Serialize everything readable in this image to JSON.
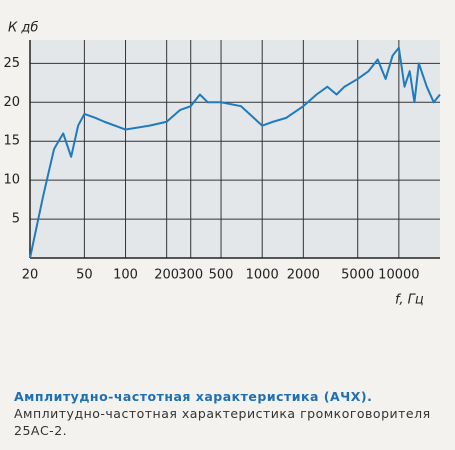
{
  "chart_data": {
    "type": "line",
    "y_label": "К дб",
    "x_label": "f, Гц",
    "x": [
      20,
      25,
      30,
      35,
      40,
      45,
      50,
      60,
      70,
      100,
      150,
      200,
      250,
      300,
      350,
      400,
      500,
      700,
      1000,
      1200,
      1500,
      2000,
      2500,
      3000,
      3500,
      4000,
      5000,
      6000,
      7000,
      8000,
      9000,
      10000,
      11000,
      12000,
      13000,
      14000,
      16000,
      18000,
      20000
    ],
    "series": [
      {
        "color": "#1f7bbf",
        "values": [
          0,
          8,
          14,
          16,
          13,
          17,
          18.5,
          18,
          17.5,
          16.5,
          17,
          17.5,
          19,
          19.5,
          21,
          20,
          20,
          19.5,
          17,
          17.5,
          18,
          19.5,
          21,
          22,
          21,
          22,
          23,
          24,
          25.5,
          23,
          26,
          27,
          22,
          24,
          20,
          25,
          22,
          20,
          21
        ]
      }
    ],
    "xlim": [
      20,
      20000
    ],
    "xscale": "log",
    "xticks": [
      20,
      50,
      100,
      200,
      300,
      500,
      1000,
      2000,
      5000,
      10000
    ],
    "ylim": [
      0,
      28
    ],
    "yticks": [
      5,
      10,
      15,
      20,
      25
    ],
    "grid": true
  },
  "caption": {
    "title": "Амплитудно-частотная характеристика (АЧХ).",
    "text": "Амплитудно-частотная характеристика громкоговорителя 25АС-2."
  }
}
